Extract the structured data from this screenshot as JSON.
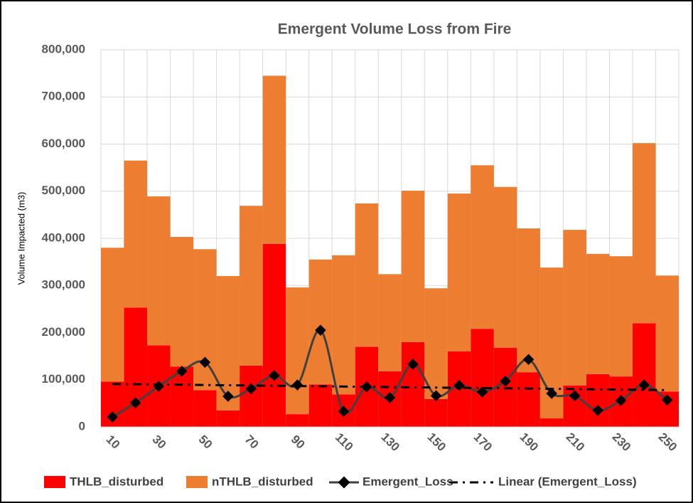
{
  "chart_data": {
    "type": "bar",
    "stacked": true,
    "title": "Emergent Volume Loss from Fire",
    "ylabel": "Volume Impacted (m3)",
    "categories": [
      10,
      null,
      30,
      null,
      50,
      null,
      70,
      null,
      90,
      null,
      110,
      null,
      130,
      null,
      150,
      null,
      170,
      null,
      190,
      null,
      210,
      null,
      230,
      null,
      250
    ],
    "ylim": [
      0,
      800000
    ],
    "yticks": [
      0,
      {
        "value": 100000,
        "label": "100,000"
      },
      {
        "value": 200000,
        "label": "200,000"
      },
      {
        "value": 300000,
        "label": "300,000"
      },
      {
        "value": 400000,
        "label": "400,000"
      },
      {
        "value": 500000,
        "label": "500,000"
      },
      {
        "value": 600000,
        "label": "600,000"
      },
      {
        "value": 700000,
        "label": "700,000"
      },
      {
        "value": 800000,
        "label": "800,000"
      }
    ],
    "grid": true,
    "legend": "bottom",
    "series": [
      {
        "name": "THLB_disturbed",
        "color": "#ff0000",
        "values": [
          96000,
          253000,
          173000,
          128000,
          78000,
          35000,
          130000,
          388000,
          27000,
          90000,
          69000,
          170000,
          118000,
          180000,
          59000,
          160000,
          208000,
          168000,
          116000,
          18000,
          88000,
          112000,
          107000,
          220000,
          75000
        ]
      },
      {
        "name": "nTHLB_disturbed",
        "color": "#ed7d31",
        "values": [
          284000,
          312000,
          316000,
          275000,
          299000,
          285000,
          339000,
          357000,
          269000,
          265000,
          295000,
          304000,
          206000,
          321000,
          235000,
          335000,
          347000,
          341000,
          305000,
          320000,
          330000,
          255000,
          255000,
          382000,
          246000
        ]
      },
      {
        "name": "Emergent_Loss",
        "color": "#404040",
        "type": "line",
        "smooth": true,
        "marker": "diamond",
        "values": [
          21000,
          51000,
          86000,
          118000,
          137000,
          65000,
          81000,
          109000,
          89000,
          205000,
          33000,
          85000,
          62000,
          133000,
          66000,
          88000,
          74000,
          97000,
          143000,
          71000,
          66000,
          35000,
          56000,
          89000,
          57000
        ]
      },
      {
        "name": "Linear (Emergent_Loss)",
        "color": "#000000",
        "type": "trend",
        "x": [
          10,
          250
        ],
        "values": [
          91000,
          78000
        ]
      }
    ]
  }
}
